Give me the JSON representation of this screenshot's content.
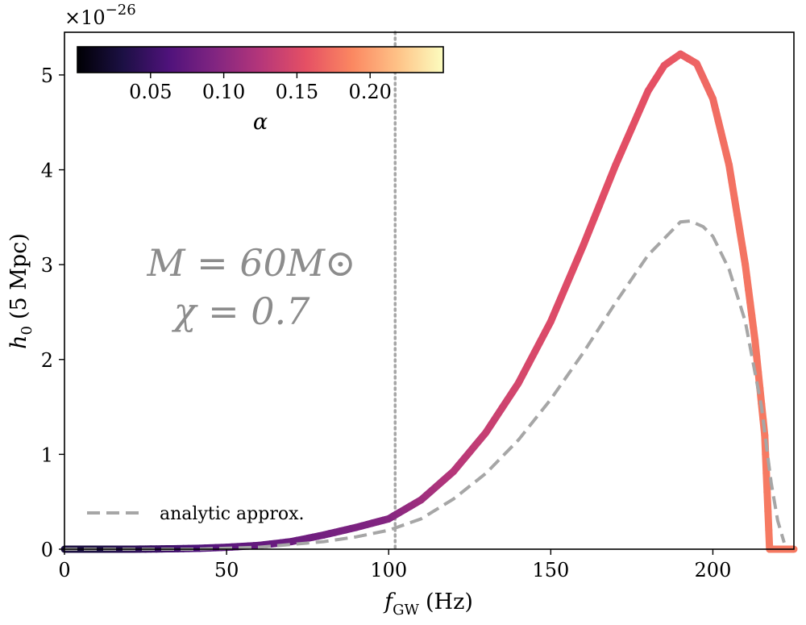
{
  "chart_data": {
    "type": "line",
    "xlabel": "f_GW (Hz)",
    "xlabel_main": "f",
    "xlabel_sub": "GW",
    "xlabel_unit": "(Hz)",
    "ylabel": "h_0 (5 Mpc)",
    "ylabel_main": "h",
    "ylabel_sub": "0",
    "ylabel_unit": "(5 Mpc)",
    "y_multiplier": "×10",
    "y_multiplier_exp": "−26",
    "xlim": [
      0,
      225
    ],
    "ylim": [
      0,
      5.45
    ],
    "xticks": [
      0,
      50,
      100,
      150,
      200
    ],
    "xtick_labels": [
      "0",
      "50",
      "100",
      "150",
      "200"
    ],
    "yticks": [
      0,
      1,
      2,
      3,
      4,
      5
    ],
    "ytick_labels": [
      "0",
      "1",
      "2",
      "3",
      "4",
      "5"
    ],
    "vertical_line": {
      "x": 102,
      "style": "dotted",
      "color": "#a6a6a6"
    },
    "annotation": {
      "line1": "M = 60M⊙",
      "line2": "χ = 0.7"
    },
    "legend": {
      "placement": "lower-left",
      "entries": [
        {
          "label": "analytic approx.",
          "style": "dashed",
          "color": "#a6a6a6"
        }
      ]
    },
    "colorbar": {
      "label": "α",
      "cmap": "magma",
      "range": [
        0.0,
        0.25
      ],
      "ticks": [
        0.05,
        0.1,
        0.15,
        0.2
      ],
      "tick_labels": [
        "0.05",
        "0.10",
        "0.15",
        "0.20"
      ],
      "colors": [
        "#000004",
        "#1c1044",
        "#4f127b",
        "#812581",
        "#b5367a",
        "#e55064",
        "#fb8761",
        "#fec287",
        "#fcfdbf"
      ]
    },
    "series": [
      {
        "style": "solid-colormapped",
        "x": [
          0,
          10,
          20,
          30,
          40,
          50,
          60,
          70,
          80,
          90,
          100,
          110,
          120,
          130,
          140,
          150,
          160,
          170,
          180,
          185,
          190,
          195,
          200,
          205,
          210,
          213,
          216,
          217.5,
          225
        ],
        "y": [
          0.0,
          0.0,
          0.0,
          0.003,
          0.008,
          0.02,
          0.04,
          0.08,
          0.15,
          0.23,
          0.32,
          0.52,
          0.82,
          1.23,
          1.75,
          2.4,
          3.2,
          4.05,
          4.83,
          5.1,
          5.22,
          5.12,
          4.75,
          4.05,
          3.0,
          2.2,
          1.2,
          0.0,
          0.0
        ],
        "alpha": [
          0.03,
          0.03,
          0.04,
          0.05,
          0.06,
          0.07,
          0.075,
          0.08,
          0.085,
          0.09,
          0.095,
          0.11,
          0.125,
          0.135,
          0.145,
          0.15,
          0.152,
          0.154,
          0.155,
          0.158,
          0.162,
          0.168,
          0.172,
          0.175,
          0.177,
          0.178,
          0.18,
          0.18,
          0.18
        ]
      },
      {
        "name": "analytic approx.",
        "style": "dashed",
        "color": "#a6a6a6",
        "x": [
          0,
          40,
          60,
          80,
          90,
          100,
          110,
          120,
          130,
          140,
          150,
          160,
          170,
          180,
          190,
          193,
          197,
          200,
          205,
          210,
          215,
          218,
          220,
          222
        ],
        "y": [
          0.0,
          0.0,
          0.02,
          0.08,
          0.13,
          0.2,
          0.32,
          0.53,
          0.8,
          1.15,
          1.58,
          2.07,
          2.6,
          3.1,
          3.45,
          3.46,
          3.4,
          3.3,
          2.95,
          2.4,
          1.5,
          0.7,
          0.3,
          0.07
        ]
      }
    ]
  }
}
